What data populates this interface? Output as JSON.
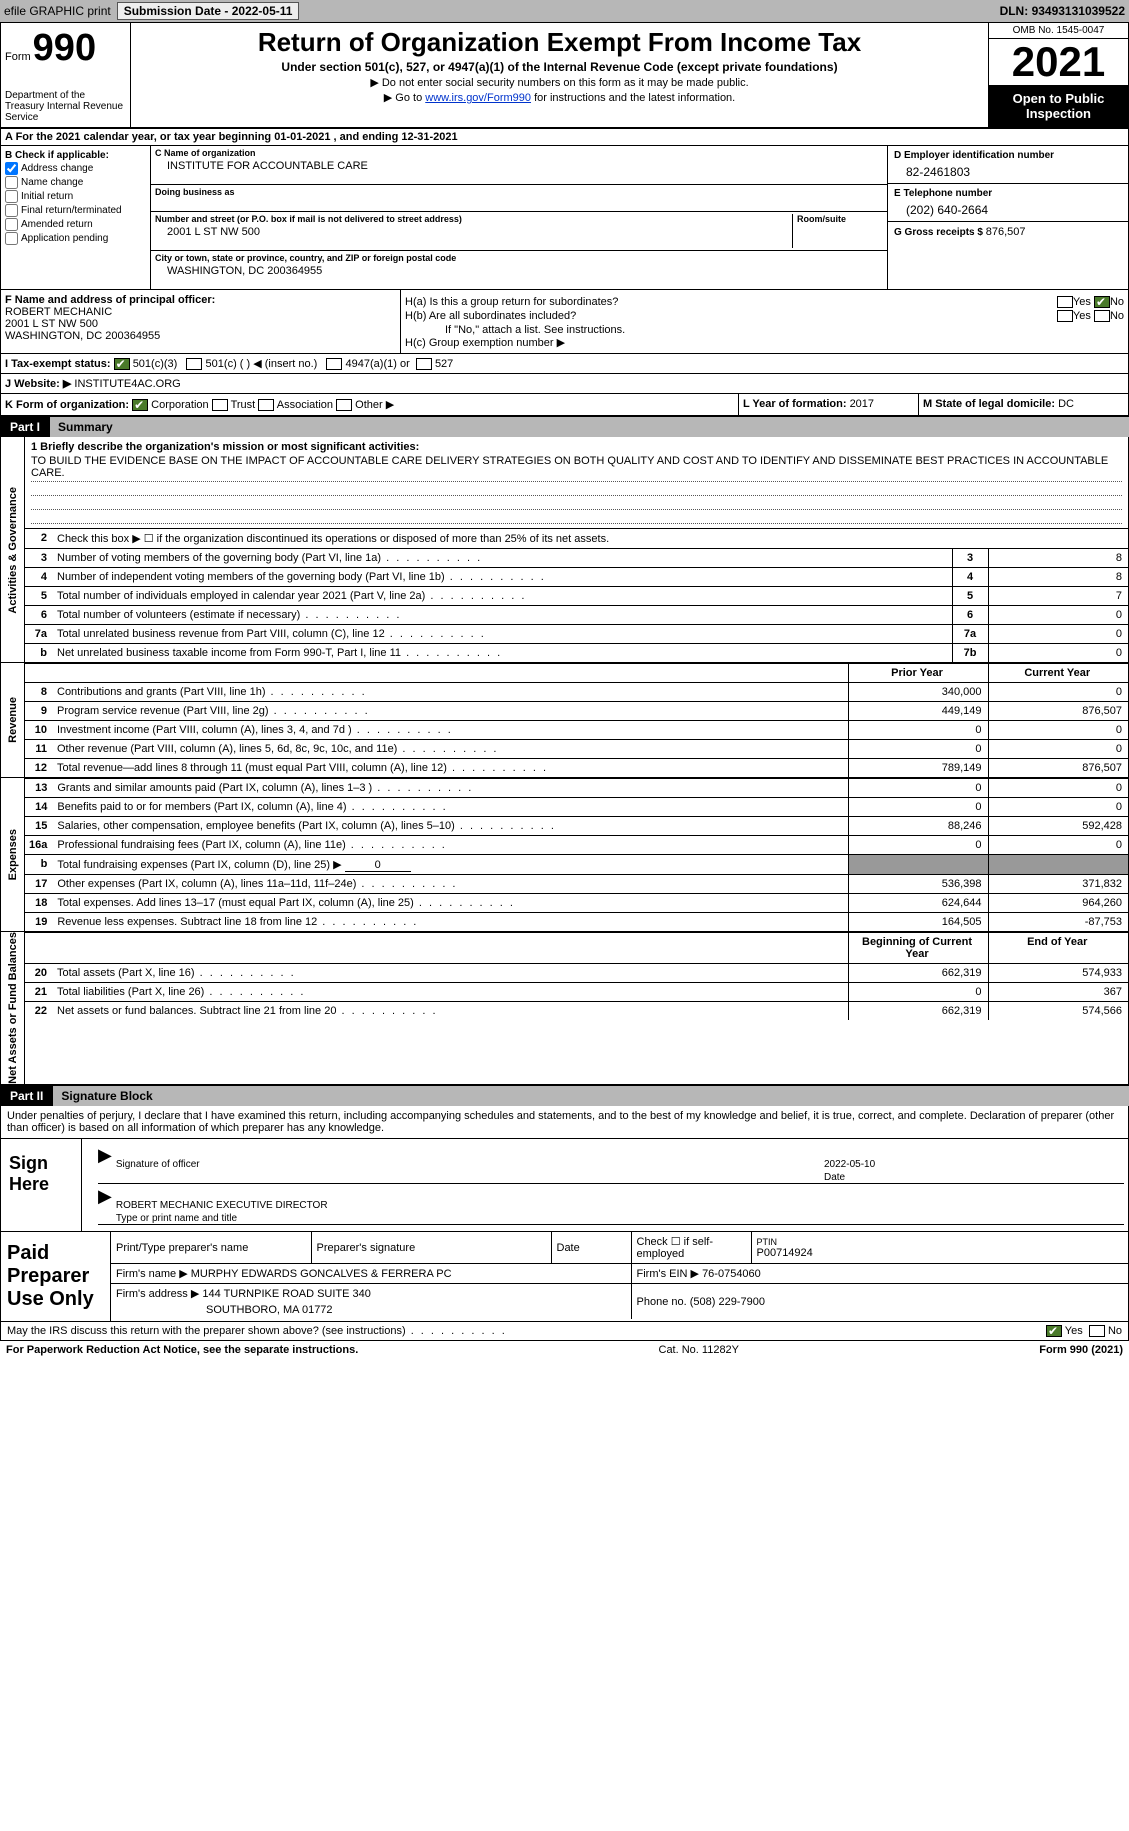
{
  "topbar": {
    "efile": "efile GRAPHIC print",
    "sub_lbl": "Submission Date - ",
    "sub_date": "2022-05-11",
    "dln_lbl": "DLN: ",
    "dln": "93493131039522"
  },
  "header": {
    "form_word": "Form",
    "form_num": "990",
    "dept": "Department of the Treasury Internal Revenue Service",
    "title": "Return of Organization Exempt From Income Tax",
    "sub": "Under section 501(c), 527, or 4947(a)(1) of the Internal Revenue Code (except private foundations)",
    "note1": "▶ Do not enter social security numbers on this form as it may be made public.",
    "note2_pre": "▶ Go to ",
    "note2_link": "www.irs.gov/Form990",
    "note2_post": " for instructions and the latest information.",
    "omb": "OMB No. 1545-0047",
    "year": "2021",
    "inspect": "Open to Public Inspection"
  },
  "cal": {
    "text": "A For the 2021 calendar year, or tax year beginning 01-01-2021   , and ending 12-31-2021"
  },
  "boxB": {
    "hdr": "B Check if applicable:",
    "addr": "Address change",
    "name": "Name change",
    "init": "Initial return",
    "final": "Final return/terminated",
    "amend": "Amended return",
    "app": "Application pending"
  },
  "boxC": {
    "name_lbl": "C Name of organization",
    "name": "INSTITUTE FOR ACCOUNTABLE CARE",
    "dba_lbl": "Doing business as",
    "dba": "",
    "street_lbl": "Number and street (or P.O. box if mail is not delivered to street address)",
    "room_lbl": "Room/suite",
    "street": "2001 L ST NW 500",
    "city_lbl": "City or town, state or province, country, and ZIP or foreign postal code",
    "city": "WASHINGTON, DC  200364955"
  },
  "boxD": {
    "ein_lbl": "D Employer identification number",
    "ein": "82-2461803",
    "tel_lbl": "E Telephone number",
    "tel": "(202) 640-2664",
    "gross_lbl": "G Gross receipts $ ",
    "gross": "876,507"
  },
  "boxF": {
    "lbl": "F Name and address of principal officer:",
    "name": "ROBERT MECHANIC",
    "addr1": "2001 L ST NW 500",
    "addr2": "WASHINGTON, DC  200364955"
  },
  "boxH": {
    "ha": "H(a)  Is this a group return for subordinates?",
    "hb": "H(b)  Are all subordinates included?",
    "hb_note": "If \"No,\" attach a list. See instructions.",
    "hc": "H(c)  Group exemption number ▶",
    "yes": "Yes",
    "no": "No"
  },
  "taxexempt": {
    "lbl": "I    Tax-exempt status:",
    "c3": "501(c)(3)",
    "c": "501(c) (  ) ◀ (insert no.)",
    "a1": "4947(a)(1) or",
    "s527": "527"
  },
  "website": {
    "lbl": "J   Website: ▶  ",
    "val": "INSTITUTE4AC.ORG"
  },
  "boxK": {
    "lbl": "K Form of organization:",
    "corp": "Corporation",
    "trust": "Trust",
    "assoc": "Association",
    "other": "Other ▶"
  },
  "boxL": {
    "lbl": "L Year of formation: ",
    "val": "2017"
  },
  "boxM": {
    "lbl": "M State of legal domicile: ",
    "val": "DC"
  },
  "parts": {
    "p1": "Part I",
    "p1t": "Summary",
    "p2": "Part II",
    "p2t": "Signature Block"
  },
  "vtabs": {
    "ag": "Activities & Governance",
    "rev": "Revenue",
    "exp": "Expenses",
    "na": "Net Assets or Fund Balances"
  },
  "mission": {
    "lbl": "1   Briefly describe the organization's mission or most significant activities:",
    "txt": "TO BUILD THE EVIDENCE BASE ON THE IMPACT OF ACCOUNTABLE CARE DELIVERY STRATEGIES ON BOTH QUALITY AND COST AND TO IDENTIFY AND DISSEMINATE BEST PRACTICES IN ACCOUNTABLE CARE."
  },
  "l2": "Check this box ▶ ☐ if the organization discontinued its operations or disposed of more than 25% of its net assets.",
  "lines_ag": [
    {
      "n": "3",
      "t": "Number of voting members of the governing body (Part VI, line 1a)",
      "b": "3",
      "v": "8"
    },
    {
      "n": "4",
      "t": "Number of independent voting members of the governing body (Part VI, line 1b)",
      "b": "4",
      "v": "8"
    },
    {
      "n": "5",
      "t": "Total number of individuals employed in calendar year 2021 (Part V, line 2a)",
      "b": "5",
      "v": "7"
    },
    {
      "n": "6",
      "t": "Total number of volunteers (estimate if necessary)",
      "b": "6",
      "v": "0"
    },
    {
      "n": "7a",
      "t": "Total unrelated business revenue from Part VIII, column (C), line 12",
      "b": "7a",
      "v": "0"
    },
    {
      "n": "b",
      "t": "Net unrelated business taxable income from Form 990-T, Part I, line 11",
      "b": "7b",
      "v": "0"
    }
  ],
  "hdr_py": "Prior Year",
  "hdr_cy": "Current Year",
  "lines_rev": [
    {
      "n": "8",
      "t": "Contributions and grants (Part VIII, line 1h)",
      "py": "340,000",
      "cy": "0"
    },
    {
      "n": "9",
      "t": "Program service revenue (Part VIII, line 2g)",
      "py": "449,149",
      "cy": "876,507"
    },
    {
      "n": "10",
      "t": "Investment income (Part VIII, column (A), lines 3, 4, and 7d )",
      "py": "0",
      "cy": "0"
    },
    {
      "n": "11",
      "t": "Other revenue (Part VIII, column (A), lines 5, 6d, 8c, 9c, 10c, and 11e)",
      "py": "0",
      "cy": "0"
    },
    {
      "n": "12",
      "t": "Total revenue—add lines 8 through 11 (must equal Part VIII, column (A), line 12)",
      "py": "789,149",
      "cy": "876,507"
    }
  ],
  "lines_exp": [
    {
      "n": "13",
      "t": "Grants and similar amounts paid (Part IX, column (A), lines 1–3 )",
      "py": "0",
      "cy": "0"
    },
    {
      "n": "14",
      "t": "Benefits paid to or for members (Part IX, column (A), line 4)",
      "py": "0",
      "cy": "0"
    },
    {
      "n": "15",
      "t": "Salaries, other compensation, employee benefits (Part IX, column (A), lines 5–10)",
      "py": "88,246",
      "cy": "592,428"
    },
    {
      "n": "16a",
      "t": "Professional fundraising fees (Part IX, column (A), line 11e)",
      "py": "0",
      "cy": "0"
    }
  ],
  "line16b": {
    "n": "b",
    "t": "Total fundraising expenses (Part IX, column (D), line 25) ▶",
    "v": "0"
  },
  "lines_exp2": [
    {
      "n": "17",
      "t": "Other expenses (Part IX, column (A), lines 11a–11d, 11f–24e)",
      "py": "536,398",
      "cy": "371,832"
    },
    {
      "n": "18",
      "t": "Total expenses. Add lines 13–17 (must equal Part IX, column (A), line 25)",
      "py": "624,644",
      "cy": "964,260"
    },
    {
      "n": "19",
      "t": "Revenue less expenses. Subtract line 18 from line 12",
      "py": "164,505",
      "cy": "-87,753"
    }
  ],
  "hdr_bcy": "Beginning of Current Year",
  "hdr_eoy": "End of Year",
  "lines_na": [
    {
      "n": "20",
      "t": "Total assets (Part X, line 16)",
      "py": "662,319",
      "cy": "574,933"
    },
    {
      "n": "21",
      "t": "Total liabilities (Part X, line 26)",
      "py": "0",
      "cy": "367"
    },
    {
      "n": "22",
      "t": "Net assets or fund balances. Subtract line 21 from line 20",
      "py": "662,319",
      "cy": "574,566"
    }
  ],
  "sigblock": {
    "decl": "Under penalties of perjury, I declare that I have examined this return, including accompanying schedules and statements, and to the best of my knowledge and belief, it is true, correct, and complete. Declaration of preparer (other than officer) is based on all information of which preparer has any knowledge.",
    "sign_here": "Sign Here",
    "sig_officer": "Signature of officer",
    "date_lbl": "Date",
    "date": "2022-05-10",
    "name": "ROBERT MECHANIC  EXECUTIVE DIRECTOR",
    "name_lbl": "Type or print name and title"
  },
  "prep": {
    "lab": "Paid Preparer Use Only",
    "pn_lbl": "Print/Type preparer's name",
    "ps_lbl": "Preparer's signature",
    "date_lbl": "Date",
    "chk_lbl": "Check ☐ if self-employed",
    "ptin_lbl": "PTIN",
    "ptin": "P00714924",
    "firm_lbl": "Firm's name    ▶ ",
    "firm": "MURPHY EDWARDS GONCALVES & FERRERA PC",
    "ein_lbl": "Firm's EIN ▶ ",
    "ein": "76-0754060",
    "addr_lbl": "Firm's address ▶ ",
    "addr1": "144 TURNPIKE ROAD SUITE 340",
    "addr2": "SOUTHBORO, MA  01772",
    "ph_lbl": "Phone no. ",
    "ph": "(508) 229-7900"
  },
  "foot": {
    "q": "May the IRS discuss this return with the preparer shown above? (see instructions)",
    "yes": "Yes",
    "no": "No"
  },
  "bottom": {
    "l": "For Paperwork Reduction Act Notice, see the separate instructions.",
    "c": "Cat. No. 11282Y",
    "r": "Form 990 (2021)"
  }
}
